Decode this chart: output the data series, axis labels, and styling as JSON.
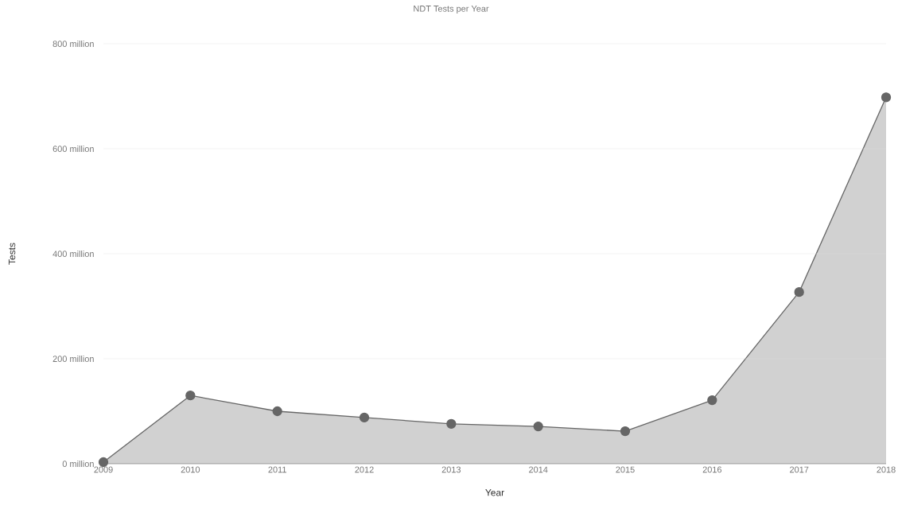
{
  "chart_data": {
    "type": "area",
    "title": "NDT Tests per Year",
    "xlabel": "Year",
    "ylabel": "Tests",
    "x": [
      2009,
      2010,
      2011,
      2012,
      2013,
      2014,
      2015,
      2016,
      2017,
      2018
    ],
    "series": [
      {
        "color": "#666666",
        "values": [
          3,
          130,
          100,
          88,
          76,
          71,
          62,
          121,
          327,
          698
        ]
      }
    ],
    "xlim": [
      2009,
      2018
    ],
    "xticks": [
      2009,
      2010,
      2011,
      2012,
      2013,
      2014,
      2015,
      2016,
      2017,
      2018
    ],
    "ylim": [
      0,
      800
    ],
    "yticks": [
      {
        "value": 0,
        "label": "0 million"
      },
      {
        "value": 200,
        "label": "200 million"
      },
      {
        "value": 400,
        "label": "400 million"
      },
      {
        "value": 600,
        "label": "600 million"
      },
      {
        "value": 800,
        "label": "800 million"
      }
    ],
    "grid": "y",
    "marker": "circle"
  }
}
